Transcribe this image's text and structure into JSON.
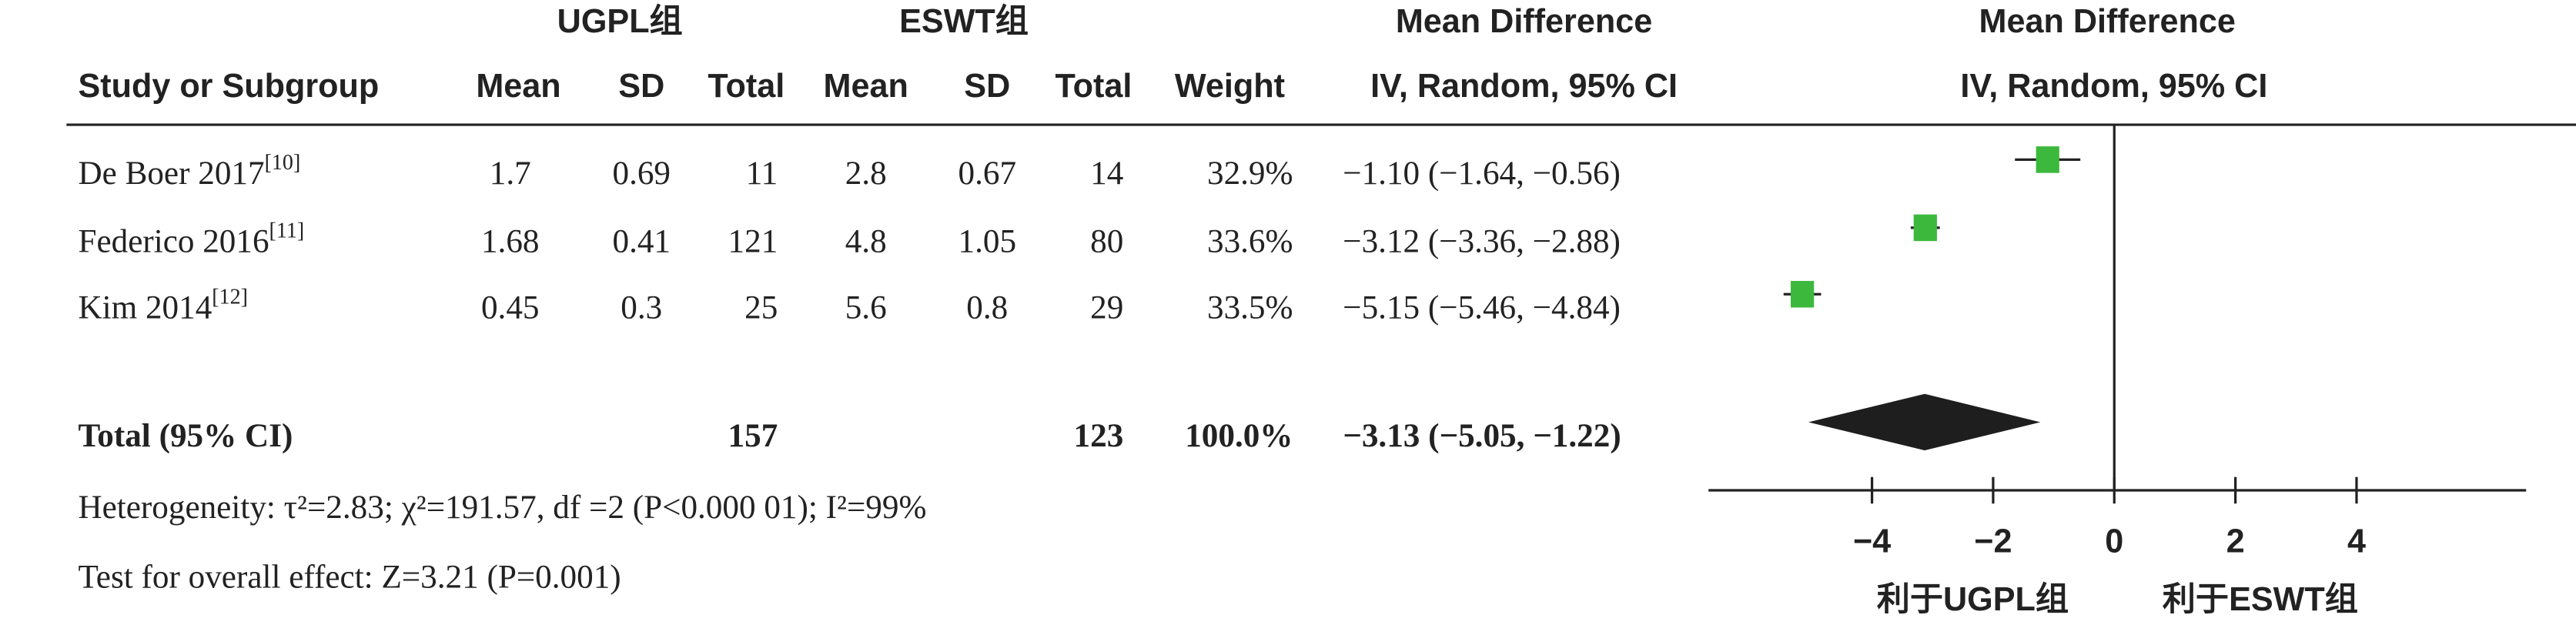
{
  "chart_data": {
    "type": "forest",
    "group1": "UGPL组",
    "group2": "ESWT组",
    "table_effect_title": "Mean Difference",
    "table_effect_method": "IV, Random, 95% CI",
    "plot_title": "Mean Difference",
    "plot_method": "IV, Random, 95% CI",
    "columns": [
      "Study or Subgroup",
      "Mean",
      "SD",
      "Total",
      "Mean",
      "SD",
      "Total",
      "Weight"
    ],
    "studies": [
      {
        "name": "De Boer 2017",
        "ref": "[10]",
        "mean1": 1.7,
        "sd1": 0.69,
        "n1": 11,
        "mean2": 2.8,
        "sd2": 0.67,
        "n2": 14,
        "weight": "32.9%",
        "md": -1.1,
        "lower": -1.64,
        "upper": -0.56,
        "ci_label": "−1.10 (−1.64, −0.56)"
      },
      {
        "name": "Federico 2016",
        "ref": "[11]",
        "mean1": 1.68,
        "sd1": 0.41,
        "n1": 121,
        "mean2": 4.8,
        "sd2": 1.05,
        "n2": 80,
        "weight": "33.6%",
        "md": -3.12,
        "lower": -3.36,
        "upper": -2.88,
        "ci_label": "−3.12 (−3.36, −2.88)"
      },
      {
        "name": "Kim 2014",
        "ref": "[12]",
        "mean1": 0.45,
        "sd1": 0.3,
        "n1": 25,
        "mean2": 5.6,
        "sd2": 0.8,
        "n2": 29,
        "weight": "33.5%",
        "md": -5.15,
        "lower": -5.46,
        "upper": -4.84,
        "ci_label": "−5.15 (−5.46, −4.84)"
      }
    ],
    "total": {
      "name": "Total (95% CI)",
      "n1": 157,
      "n2": 123,
      "weight": "100.0%",
      "md": -3.13,
      "lower": -5.05,
      "upper": -1.22,
      "ci_label": "−3.13 (−5.05, −1.22)"
    },
    "heterogeneity": "Heterogeneity: τ²=2.83; χ²=191.57, df =2 (P<0.000 01); I²=99%",
    "overall_effect": "Test for overall effect: Z=3.21 (P=0.001)",
    "favours_left": "利于UGPL组",
    "favours_right": "利于ESWT组",
    "color": "#3cb93c",
    "xlim": [
      -6.7,
      6.8
    ],
    "xticks": [
      {
        "value": -4,
        "label": "−4"
      },
      {
        "value": -2,
        "label": "−2"
      },
      0,
      2,
      4
    ]
  }
}
